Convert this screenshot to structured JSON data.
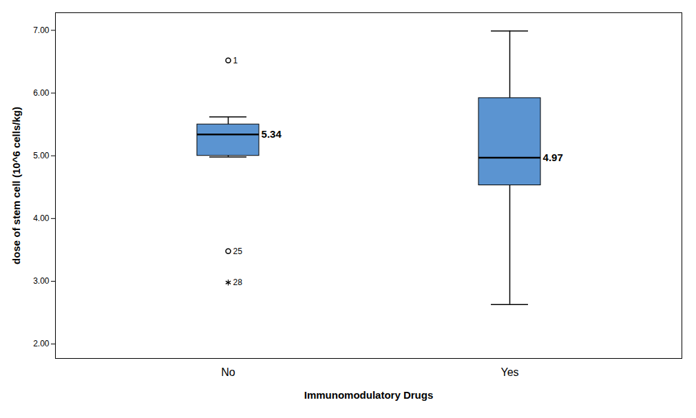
{
  "chart_data": {
    "type": "box",
    "x_label": "Immunomodulatory Drugs",
    "y_label": "dose of stem cell (10^6 cells/kg)",
    "categories": [
      "No",
      "Yes"
    ],
    "boxes": [
      {
        "min": 4.98,
        "q1": 5.0,
        "median": 5.34,
        "q3": 5.5,
        "max": 5.62,
        "outliers": [
          {
            "value": 6.52,
            "label": "1",
            "marker": "circle"
          },
          {
            "value": 3.48,
            "label": "25",
            "marker": "circle"
          },
          {
            "value": 2.98,
            "label": "28",
            "marker": "star"
          }
        ]
      },
      {
        "min": 2.63,
        "q1": 4.53,
        "median": 4.97,
        "q3": 5.92,
        "max": 6.99,
        "outliers": []
      }
    ],
    "color": "#5b94d1",
    "data_labels": true,
    "grid": false,
    "ylim": [
      1.77,
      7.28
    ],
    "yticks": [
      {
        "value": 2,
        "label": "2.00"
      },
      {
        "value": 3,
        "label": "3.00"
      },
      {
        "value": 4,
        "label": "4.00"
      },
      {
        "value": 5,
        "label": "5.00"
      },
      {
        "value": 6,
        "label": "6.00"
      },
      {
        "value": 7,
        "label": "7.00"
      }
    ]
  }
}
